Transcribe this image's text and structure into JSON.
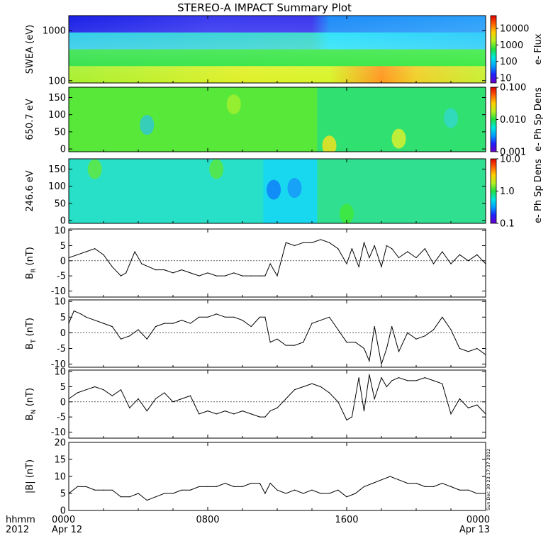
{
  "title": "STEREO-A IMPACT Summary Plot",
  "stamp": "Sun Dec 30 23:17:37 2012",
  "x_axis": {
    "row_label": "hhmm",
    "year": "2012",
    "ticks": [
      "0000",
      "0800",
      "1600",
      "0000"
    ],
    "dates": [
      "Apr 12",
      "Apr 13"
    ]
  },
  "chart_data": [
    {
      "type": "heatmap",
      "ylabel": "SWEA (eV)",
      "yscale": "log",
      "ylim": [
        90,
        2000
      ],
      "yticks": [
        "1000",
        "100"
      ],
      "ytick_values": [
        1000,
        100
      ],
      "colorbar": {
        "label": "e- Flux",
        "ticks": [
          "10000",
          "1000",
          "100",
          "10"
        ],
        "tick_values": [
          10000,
          1000,
          100,
          10
        ],
        "range": [
          5,
          60000
        ],
        "scale": "log"
      },
      "bands": [
        {
          "name": "top",
          "colors": {
            "x": [
              0,
              8,
              14,
              15,
              24
            ],
            "c": [
              "#1a20e6",
              "#3a3af0",
              "#3b37ee",
              "#1e8cf8",
              "#2aa0fa"
            ]
          }
        },
        {
          "name": "upper",
          "colors": {
            "x": [
              0,
              14,
              15,
              24
            ],
            "c": [
              "#22c8e8",
              "#30d4c8",
              "#20e0f8",
              "#20c8f8"
            ]
          }
        },
        {
          "name": "middle",
          "colors": {
            "x": [
              0,
              24
            ],
            "c": [
              "#28e040",
              "#30e838"
            ]
          }
        },
        {
          "name": "lower",
          "colors": {
            "x": [
              0,
              10,
              15,
              18,
              20,
              24
            ],
            "c": [
              "#a8f030",
              "#e0f028",
              "#d8f428",
              "#ff9820",
              "#f0d028",
              "#c8f030"
            ]
          }
        }
      ]
    },
    {
      "type": "heatmap",
      "ylabel": "650.7 eV",
      "ylim": [
        -8,
        180
      ],
      "yticks": [
        "150",
        "100",
        "50",
        "0"
      ],
      "ytick_values": [
        150,
        100,
        50,
        0
      ],
      "colorbar": {
        "label": "e- Ph Sp Dens",
        "ticks": [
          "0.100",
          "0.010",
          "0.001"
        ],
        "tick_values": [
          0.1,
          0.01,
          0.001
        ],
        "range": [
          0.001,
          0.1
        ],
        "scale": "log"
      },
      "regions": [
        {
          "x0": 0,
          "x1": 14.3,
          "color": "#58e83a"
        },
        {
          "x0": 14.3,
          "x1": 24,
          "color": "#30e070"
        }
      ],
      "features": [
        {
          "x": 9.5,
          "y": 130,
          "color": "#a0f030"
        },
        {
          "x": 4.5,
          "y": 70,
          "color": "#30c8d0"
        },
        {
          "x": 15.0,
          "y": 10,
          "color": "#f0e020"
        },
        {
          "x": 19.0,
          "y": 30,
          "color": "#d8f030"
        },
        {
          "x": 22.0,
          "y": 90,
          "color": "#30d8c8"
        }
      ]
    },
    {
      "type": "heatmap",
      "ylabel": "246.6 eV",
      "ylim": [
        -8,
        180
      ],
      "yticks": [
        "150",
        "100",
        "50",
        "0"
      ],
      "ytick_values": [
        150,
        100,
        50,
        0
      ],
      "colorbar": {
        "label": "e- Ph Sp Dens",
        "ticks": [
          "10.0",
          "1.0",
          "0.1"
        ],
        "tick_values": [
          10,
          1,
          0.1
        ],
        "range": [
          0.1,
          10
        ],
        "scale": "log"
      },
      "regions": [
        {
          "x0": 0,
          "x1": 11.2,
          "color": "#28e0c8"
        },
        {
          "x0": 11.2,
          "x1": 14.3,
          "color": "#18d8f0"
        },
        {
          "x0": 14.3,
          "x1": 24,
          "color": "#30e090"
        }
      ],
      "features": [
        {
          "x": 1.5,
          "y": 150,
          "color": "#60e840"
        },
        {
          "x": 8.5,
          "y": 150,
          "color": "#58e840"
        },
        {
          "x": 11.8,
          "y": 90,
          "color": "#1080f8"
        },
        {
          "x": 13.0,
          "y": 95,
          "color": "#1898f8"
        },
        {
          "x": 16.0,
          "y": 20,
          "color": "#40e838"
        }
      ]
    },
    {
      "type": "line",
      "ylabel": "BR (nT)",
      "ylabel_main": "B",
      "ylabel_sub": "R",
      "ylabel_unit": "(nT)",
      "ylim": [
        -12,
        10.5
      ],
      "yticks": [
        "10",
        "5",
        "0",
        "-5",
        "-10"
      ],
      "ytick_values": [
        10,
        5,
        0,
        -5,
        -10
      ],
      "x": [
        0,
        0.5,
        1,
        1.5,
        2,
        2.5,
        3,
        3.3,
        3.8,
        4.2,
        4.6,
        5,
        5.5,
        6,
        6.5,
        7,
        7.5,
        8,
        8.5,
        9,
        9.5,
        10,
        10.5,
        11,
        11.3,
        11.6,
        12,
        12.5,
        13,
        13.5,
        14,
        14.5,
        15,
        15.5,
        16,
        16.3,
        16.7,
        17,
        17.3,
        17.6,
        18,
        18.3,
        18.6,
        19,
        19.5,
        20,
        20.5,
        21,
        21.5,
        22,
        22.5,
        23,
        23.5,
        24
      ],
      "values": [
        1,
        2,
        3,
        4,
        2,
        -2,
        -5,
        -4,
        3,
        -1,
        -2,
        -3,
        -3,
        -4,
        -3,
        -4,
        -5,
        -4,
        -5,
        -5,
        -4,
        -5,
        -5,
        -5,
        -5,
        -1,
        -5,
        6,
        5,
        6,
        6,
        7,
        6,
        4,
        -1,
        4,
        -2,
        6,
        1,
        5,
        -2,
        5,
        4,
        1,
        3,
        1,
        4,
        -1,
        3,
        -1,
        2,
        0,
        2,
        -1
      ]
    },
    {
      "type": "line",
      "ylabel": "BT (nT)",
      "ylabel_main": "B",
      "ylabel_sub": "T",
      "ylabel_unit": "(nT)",
      "ylim": [
        -11,
        10.5
      ],
      "yticks": [
        "10",
        "5",
        "0",
        "-5",
        "-10"
      ],
      "ytick_values": [
        10,
        5,
        0,
        -5,
        -10
      ],
      "x": [
        0,
        0.3,
        0.7,
        1,
        1.5,
        2,
        2.5,
        3,
        3.5,
        4,
        4.5,
        5,
        5.5,
        6,
        6.5,
        7,
        7.5,
        8,
        8.5,
        9,
        9.5,
        10,
        10.5,
        11,
        11.3,
        11.6,
        12,
        12.5,
        13,
        13.5,
        14,
        14.5,
        15,
        15.5,
        16,
        16.5,
        17,
        17.3,
        17.6,
        18,
        18.3,
        18.6,
        19,
        19.5,
        20,
        20.5,
        21,
        21.5,
        22,
        22.5,
        23,
        23.5,
        24
      ],
      "values": [
        3,
        7,
        6,
        5,
        4,
        3,
        2,
        -2,
        -1,
        1,
        -2,
        2,
        3,
        3,
        4,
        3,
        5,
        5,
        6,
        5,
        5,
        4,
        2,
        5,
        5,
        -3,
        -2,
        -4,
        -4,
        -3,
        3,
        4,
        5,
        1,
        -3,
        -3,
        -5,
        -9,
        2,
        -10,
        -5,
        2,
        -6,
        0,
        -2,
        -1,
        1,
        5,
        1,
        -5,
        -6,
        -5,
        -7
      ]
    },
    {
      "type": "line",
      "ylabel": "BN (nT)",
      "ylabel_main": "B",
      "ylabel_sub": "N",
      "ylabel_unit": "(nT)",
      "ylim": [
        -12,
        10.5
      ],
      "yticks": [
        "10",
        "5",
        "0",
        "-5",
        "-10"
      ],
      "ytick_values": [
        10,
        5,
        0,
        -5,
        -10
      ],
      "x": [
        0,
        0.5,
        1,
        1.5,
        2,
        2.5,
        3,
        3.5,
        4,
        4.5,
        5,
        5.5,
        6,
        6.5,
        7,
        7.5,
        8,
        8.5,
        9,
        9.5,
        10,
        10.5,
        11,
        11.3,
        11.6,
        12,
        12.5,
        13,
        13.5,
        14,
        14.5,
        15,
        15.5,
        16,
        16.3,
        16.7,
        17,
        17.3,
        17.6,
        18,
        18.3,
        18.6,
        19,
        19.5,
        20,
        20.5,
        21,
        21.5,
        22,
        22.5,
        23,
        23.5,
        24
      ],
      "values": [
        1,
        3,
        4,
        5,
        4,
        2,
        4,
        -2,
        1,
        -3,
        1,
        3,
        0,
        1,
        2,
        -4,
        -3,
        -4,
        -3,
        -4,
        -3,
        -4,
        -5,
        -5,
        -3,
        -2,
        1,
        4,
        5,
        6,
        5,
        3,
        0,
        -6,
        -5,
        8,
        -3,
        9,
        1,
        8,
        5,
        7,
        8,
        7,
        7,
        8,
        7,
        6,
        -4,
        1,
        -2,
        -1,
        -4
      ]
    },
    {
      "type": "line",
      "ylabel": "|B| (nT)",
      "ylabel_main": "|B|",
      "ylabel_sub": "",
      "ylabel_unit": "(nT)",
      "ylim": [
        0,
        20
      ],
      "yticks": [
        "20",
        "15",
        "10",
        "5",
        "0"
      ],
      "ytick_values": [
        20,
        15,
        10,
        5,
        0
      ],
      "x": [
        0,
        0.5,
        1,
        1.5,
        2,
        2.5,
        3,
        3.5,
        4,
        4.5,
        5,
        5.5,
        6,
        6.5,
        7,
        7.5,
        8,
        8.5,
        9,
        9.5,
        10,
        10.5,
        11,
        11.3,
        11.6,
        12,
        12.5,
        13,
        13.5,
        14,
        14.5,
        15,
        15.5,
        16,
        16.5,
        17,
        17.5,
        18,
        18.5,
        19,
        19.5,
        20,
        20.5,
        21,
        21.5,
        22,
        22.5,
        23,
        23.5,
        24
      ],
      "values": [
        5,
        7,
        7,
        6,
        6,
        6,
        4,
        4,
        5,
        3,
        4,
        5,
        5,
        6,
        6,
        7,
        7,
        7,
        8,
        7,
        7,
        8,
        8,
        5,
        8,
        6,
        5,
        6,
        5,
        6,
        5,
        5,
        6,
        4,
        5,
        7,
        8,
        9,
        10,
        9,
        8,
        8,
        7,
        7,
        8,
        7,
        6,
        6,
        5,
        5
      ]
    }
  ]
}
